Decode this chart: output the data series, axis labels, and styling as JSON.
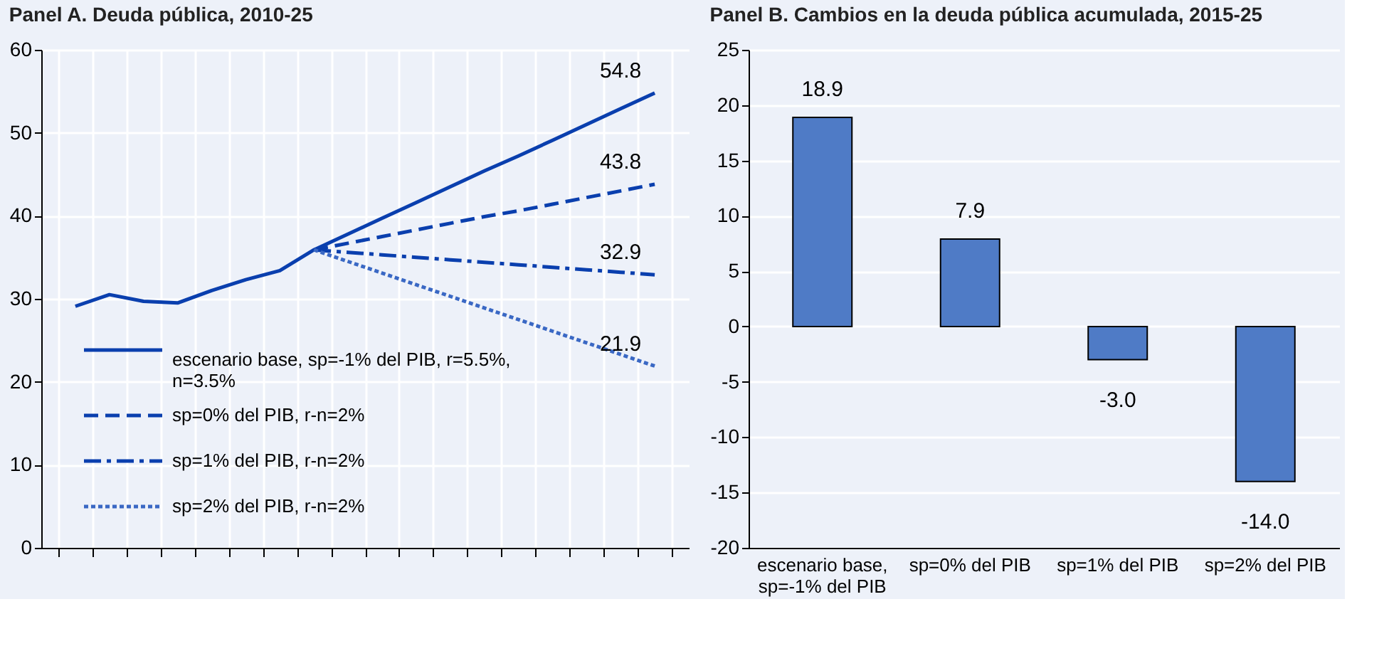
{
  "chart_data": [
    {
      "type": "line",
      "title": "Panel A. Deuda pública, 2010-25",
      "categories": [
        null,
        null,
        null,
        null,
        null,
        null,
        null,
        null,
        null,
        null,
        null,
        null,
        null,
        null,
        null,
        null,
        null,
        null
      ],
      "ylim": [
        0,
        60
      ],
      "yticks": [
        0,
        10,
        20,
        30,
        40,
        50,
        60
      ],
      "grid": true,
      "tick_labels": "y",
      "legend": "bottom left",
      "series": [
        {
          "name": "escenario base,  sp=-1% del PIB, r=5.5%, n=3.5%",
          "color": "#0a3fae",
          "line_style": "solid",
          "values": [
            29.1,
            30.5,
            29.7,
            29.5,
            31.0,
            32.3,
            33.4,
            35.9,
            37.8,
            39.7,
            41.6,
            43.5,
            45.4,
            47.2,
            49.1,
            51.0,
            52.9,
            54.8
          ],
          "value_labels": [
            null,
            null,
            null,
            null,
            null,
            null,
            null,
            null,
            null,
            null,
            null,
            null,
            null,
            null,
            null,
            null,
            null,
            "54.8"
          ]
        },
        {
          "name": "sp=0% del PIB, r-n=2%",
          "color": "#0a3fae",
          "line_style": "dashed",
          "values": [
            null,
            null,
            null,
            null,
            null,
            null,
            null,
            35.9,
            36.7,
            37.5,
            38.3,
            39.1,
            39.9,
            40.6,
            41.4,
            42.2,
            43.0,
            43.8
          ],
          "value_labels": [
            null,
            null,
            null,
            null,
            null,
            null,
            null,
            null,
            null,
            null,
            null,
            null,
            null,
            null,
            null,
            null,
            null,
            "43.8"
          ]
        },
        {
          "name": "sp=1% del PIB, r-n=2%",
          "color": "#0a3fae",
          "line_style": "dashdot",
          "values": [
            null,
            null,
            null,
            null,
            null,
            null,
            null,
            35.9,
            35.6,
            35.3,
            35.0,
            34.7,
            34.4,
            34.1,
            33.8,
            33.5,
            33.2,
            32.9
          ],
          "value_labels": [
            null,
            null,
            null,
            null,
            null,
            null,
            null,
            null,
            null,
            null,
            null,
            null,
            null,
            null,
            null,
            null,
            null,
            "32.9"
          ]
        },
        {
          "name": "sp=2% del PIB, r-n=2%",
          "color": "#3a68c4",
          "line_style": "dotted",
          "values": [
            null,
            null,
            null,
            null,
            null,
            null,
            null,
            35.9,
            34.5,
            33.1,
            31.7,
            30.3,
            28.9,
            27.5,
            26.1,
            24.7,
            23.3,
            21.9
          ],
          "value_labels": [
            null,
            null,
            null,
            null,
            null,
            null,
            null,
            null,
            null,
            null,
            null,
            null,
            null,
            null,
            null,
            null,
            null,
            "21.9"
          ]
        }
      ]
    },
    {
      "type": "bar",
      "title": "Panel B. Cambios en la deuda pública acumulada, 2015-25",
      "categories": [
        "escenario base, sp=-1% del PIB",
        "sp=0% del PIB",
        "sp=1% del PIB",
        "sp=2% del PIB"
      ],
      "values": [
        18.9,
        7.9,
        -3.0,
        -14.0
      ],
      "value_labels": [
        "18.9",
        "7.9",
        "-3.0",
        "-14.0"
      ],
      "color": "#4f7bc6",
      "ylim": [
        -20,
        25
      ],
      "yticks": [
        -20,
        -15,
        -10,
        -5,
        0,
        5,
        10,
        15,
        20,
        25
      ],
      "grid": "y"
    }
  ]
}
